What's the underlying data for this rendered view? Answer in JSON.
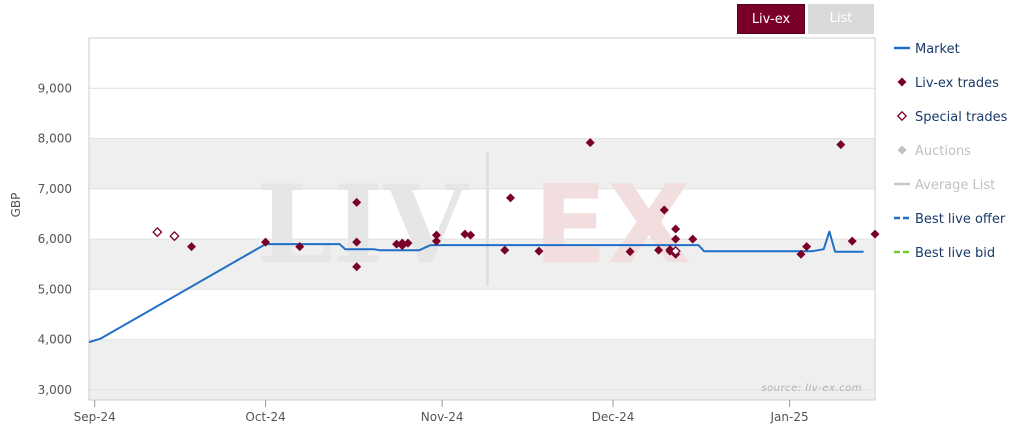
{
  "tabs": {
    "active": "Liv-ex",
    "inactive": "List"
  },
  "watermark": {
    "left": "LIV",
    "right": "EX"
  },
  "source": "source: liv-ex.com",
  "colors": {
    "market": "#1f6fc6",
    "trade": "#7a0028",
    "special": "#7a0028",
    "auctions": "#c0c0c0",
    "average_list": "#c8c8c8",
    "best_offer": "#1f6fc6",
    "best_bid": "#77c832",
    "band": "#efefef",
    "watermark_left": "#e6e6e6",
    "watermark_right": "#f2dede"
  },
  "chart_data": {
    "type": "line",
    "ylabel": "GBP",
    "ylim": [
      2800,
      10000
    ],
    "yticks": [
      3000,
      4000,
      5000,
      6000,
      7000,
      8000,
      9000
    ],
    "ytick_labels": [
      "3,000",
      "4,000",
      "5,000",
      "6,000",
      "7,000",
      "8,000",
      "9,000"
    ],
    "xlim": [
      "2024-08-31",
      "2025-01-16"
    ],
    "xticks": [
      "2024-09-01",
      "2024-10-01",
      "2024-11-01",
      "2024-12-01",
      "2025-01-01"
    ],
    "xtick_labels": [
      "Sep-24",
      "Oct-24",
      "Nov-24",
      "Dec-24",
      "Jan-25"
    ],
    "legend": [
      {
        "name": "Market",
        "symbol": "line",
        "color": "#1f6fc6",
        "text_color": "#1a3a6b"
      },
      {
        "name": "Liv-ex trades",
        "symbol": "diamond",
        "color": "#7a0028",
        "text_color": "#1a3a6b"
      },
      {
        "name": "Special trades",
        "symbol": "diamond-open",
        "color": "#7a0028",
        "text_color": "#1a3a6b"
      },
      {
        "name": "Auctions",
        "symbol": "diamond",
        "color": "#c0c0c0",
        "text_color": "#c0c0c0"
      },
      {
        "name": "Average List",
        "symbol": "line",
        "color": "#c8c8c8",
        "text_color": "#c0c0c0"
      },
      {
        "name": "Best live offer",
        "symbol": "dash",
        "color": "#1f6fc6",
        "text_color": "#1a3a6b"
      },
      {
        "name": "Best live bid",
        "symbol": "dash",
        "color": "#77c832",
        "text_color": "#1a3a6b"
      }
    ],
    "series": [
      {
        "name": "Market",
        "points": [
          [
            "2024-08-31",
            3950
          ],
          [
            "2024-09-02",
            4020
          ],
          [
            "2024-10-01",
            5900
          ],
          [
            "2024-10-14",
            5900
          ],
          [
            "2024-10-15",
            5800
          ],
          [
            "2024-10-20",
            5800
          ],
          [
            "2024-10-21",
            5780
          ],
          [
            "2024-10-28",
            5780
          ],
          [
            "2024-10-30",
            5880
          ],
          [
            "2024-12-16",
            5880
          ],
          [
            "2024-12-17",
            5760
          ],
          [
            "2025-01-05",
            5760
          ],
          [
            "2025-01-07",
            5800
          ],
          [
            "2025-01-08",
            6150
          ],
          [
            "2025-01-09",
            5750
          ],
          [
            "2025-01-14",
            5750
          ]
        ]
      },
      {
        "name": "Liv-ex trades",
        "points": [
          [
            "2024-09-18",
            5850
          ],
          [
            "2024-10-01",
            5940
          ],
          [
            "2024-10-07",
            5850
          ],
          [
            "2024-10-17",
            6730
          ],
          [
            "2024-10-17",
            5940
          ],
          [
            "2024-10-17",
            5450
          ],
          [
            "2024-10-24",
            5900
          ],
          [
            "2024-10-25",
            5920
          ],
          [
            "2024-10-25",
            5870
          ],
          [
            "2024-10-26",
            5920
          ],
          [
            "2024-10-31",
            5960
          ],
          [
            "2024-10-31",
            6080
          ],
          [
            "2024-11-05",
            6100
          ],
          [
            "2024-11-06",
            6080
          ],
          [
            "2024-11-12",
            5780
          ],
          [
            "2024-11-13",
            6820
          ],
          [
            "2024-11-18",
            5760
          ],
          [
            "2024-11-27",
            7920
          ],
          [
            "2024-12-04",
            5750
          ],
          [
            "2024-12-09",
            5780
          ],
          [
            "2024-12-10",
            6580
          ],
          [
            "2024-12-11",
            5760
          ],
          [
            "2024-12-11",
            5790
          ],
          [
            "2024-12-12",
            6000
          ],
          [
            "2024-12-12",
            6200
          ],
          [
            "2024-12-12",
            5700
          ],
          [
            "2024-12-15",
            6000
          ],
          [
            "2025-01-03",
            5700
          ],
          [
            "2025-01-04",
            5850
          ],
          [
            "2025-01-10",
            7880
          ],
          [
            "2025-01-12",
            5960
          ],
          [
            "2025-01-16",
            6100
          ]
        ]
      },
      {
        "name": "Special trades",
        "points": [
          [
            "2024-09-12",
            6140
          ],
          [
            "2024-09-15",
            6060
          ],
          [
            "2024-12-12",
            5760
          ]
        ]
      }
    ]
  }
}
